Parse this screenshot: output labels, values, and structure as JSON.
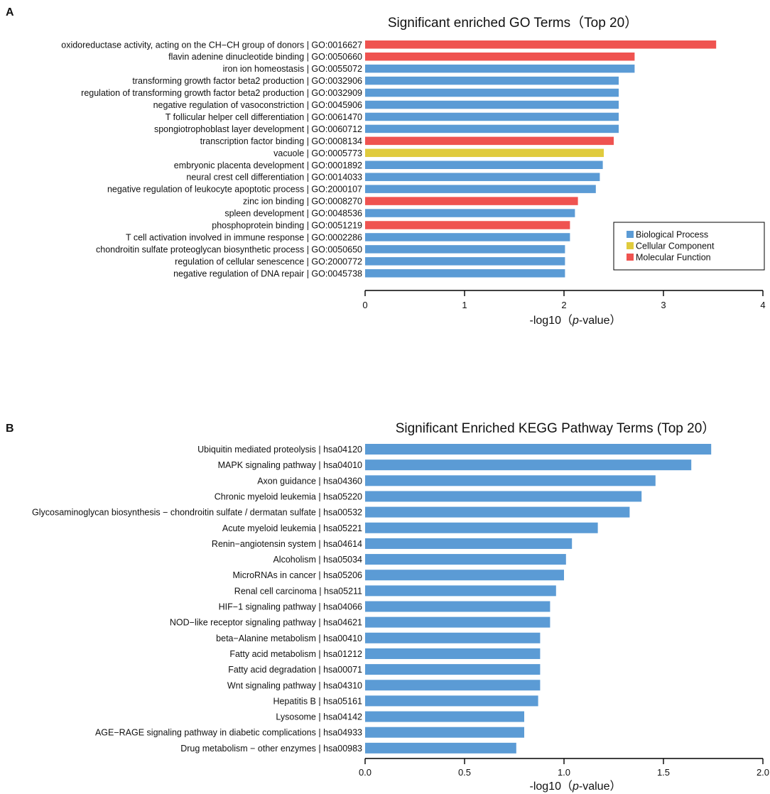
{
  "chart_data": [
    {
      "panel_label": "A",
      "type": "bar",
      "orientation": "horizontal",
      "title": "Significant enriched GO Terms（Top 20）",
      "xlabel_prefix": "-log10（",
      "xlabel_italic": "p",
      "xlabel_suffix": "-value）",
      "xlim": [
        0,
        4
      ],
      "xticks": [
        0,
        1,
        2,
        3,
        4
      ],
      "xtick_labels": [
        "0",
        "1",
        "2",
        "3",
        "4"
      ],
      "legend": {
        "position": "right",
        "entries": [
          {
            "key": "BP",
            "label": "Biological Process",
            "color": "#5b9bd5"
          },
          {
            "key": "CC",
            "label": "Cellular Component",
            "color": "#e0cb3d"
          },
          {
            "key": "MF",
            "label": "Molecular Function",
            "color": "#ef5350"
          }
        ]
      },
      "bars": [
        {
          "label": "oxidoreductase activity, acting on the CH−CH group of donors | GO:0016627",
          "value": 3.53,
          "group": "MF"
        },
        {
          "label": "flavin adenine dinucleotide binding | GO:0050660",
          "value": 2.71,
          "group": "MF"
        },
        {
          "label": "iron ion homeostasis | GO:0055072",
          "value": 2.71,
          "group": "BP"
        },
        {
          "label": "transforming growth factor beta2 production | GO:0032906",
          "value": 2.55,
          "group": "BP"
        },
        {
          "label": "regulation of transforming growth factor beta2 production | GO:0032909",
          "value": 2.55,
          "group": "BP"
        },
        {
          "label": "negative regulation of vasoconstriction | GO:0045906",
          "value": 2.55,
          "group": "BP"
        },
        {
          "label": "T follicular helper cell differentiation | GO:0061470",
          "value": 2.55,
          "group": "BP"
        },
        {
          "label": "spongiotrophoblast layer development | GO:0060712",
          "value": 2.55,
          "group": "BP"
        },
        {
          "label": "transcription factor binding | GO:0008134",
          "value": 2.5,
          "group": "MF"
        },
        {
          "label": "vacuole | GO:0005773",
          "value": 2.4,
          "group": "CC"
        },
        {
          "label": "embryonic placenta development | GO:0001892",
          "value": 2.39,
          "group": "BP"
        },
        {
          "label": "neural crest cell differentiation | GO:0014033",
          "value": 2.36,
          "group": "BP"
        },
        {
          "label": "negative regulation of leukocyte apoptotic process | GO:2000107",
          "value": 2.32,
          "group": "BP"
        },
        {
          "label": "zinc ion binding | GO:0008270",
          "value": 2.14,
          "group": "MF"
        },
        {
          "label": "spleen development | GO:0048536",
          "value": 2.11,
          "group": "BP"
        },
        {
          "label": "phosphoprotein binding | GO:0051219",
          "value": 2.06,
          "group": "MF"
        },
        {
          "label": "T cell activation involved in immune response | GO:0002286",
          "value": 2.06,
          "group": "BP"
        },
        {
          "label": "chondroitin sulfate proteoglycan biosynthetic process | GO:0050650",
          "value": 2.01,
          "group": "BP"
        },
        {
          "label": "regulation of cellular senescence | GO:2000772",
          "value": 2.01,
          "group": "BP"
        },
        {
          "label": "negative regulation of DNA repair | GO:0045738",
          "value": 2.01,
          "group": "BP"
        }
      ]
    },
    {
      "panel_label": "B",
      "type": "bar",
      "orientation": "horizontal",
      "title": "Significant Enriched KEGG Pathway Terms (Top 20）",
      "xlabel_prefix": "-log10（",
      "xlabel_italic": "p",
      "xlabel_suffix": "-value）",
      "xlim": [
        0,
        2
      ],
      "xticks": [
        0,
        0.5,
        1,
        1.5,
        2
      ],
      "xtick_labels": [
        "0.0",
        "0.5",
        "1.0",
        "1.5",
        "2.0"
      ],
      "bar_color": "#5b9bd5",
      "bars": [
        {
          "label": "Ubiquitin mediated proteolysis | hsa04120",
          "value": 1.74
        },
        {
          "label": "MAPK signaling pathway | hsa04010",
          "value": 1.64
        },
        {
          "label": "Axon guidance | hsa04360",
          "value": 1.46
        },
        {
          "label": "Chronic myeloid leukemia | hsa05220",
          "value": 1.39
        },
        {
          "label": "Glycosaminoglycan biosynthesis − chondroitin sulfate / dermatan sulfate | hsa00532",
          "value": 1.33
        },
        {
          "label": "Acute myeloid leukemia | hsa05221",
          "value": 1.17
        },
        {
          "label": "Renin−angiotensin system | hsa04614",
          "value": 1.04
        },
        {
          "label": "Alcoholism | hsa05034",
          "value": 1.01
        },
        {
          "label": "MicroRNAs in cancer | hsa05206",
          "value": 1.0
        },
        {
          "label": "Renal cell carcinoma | hsa05211",
          "value": 0.96
        },
        {
          "label": "HIF−1 signaling pathway | hsa04066",
          "value": 0.93
        },
        {
          "label": "NOD−like receptor signaling pathway | hsa04621",
          "value": 0.93
        },
        {
          "label": "beta−Alanine metabolism | hsa00410",
          "value": 0.88
        },
        {
          "label": "Fatty acid metabolism | hsa01212",
          "value": 0.88
        },
        {
          "label": "Fatty acid degradation | hsa00071",
          "value": 0.88
        },
        {
          "label": "Wnt signaling pathway | hsa04310",
          "value": 0.88
        },
        {
          "label": "Hepatitis B | hsa05161",
          "value": 0.87
        },
        {
          "label": "Lysosome | hsa04142",
          "value": 0.8
        },
        {
          "label": "AGE−RAGE signaling pathway in diabetic complications | hsa04933",
          "value": 0.8
        },
        {
          "label": "Drug metabolism − other enzymes | hsa00983",
          "value": 0.76
        }
      ]
    }
  ]
}
